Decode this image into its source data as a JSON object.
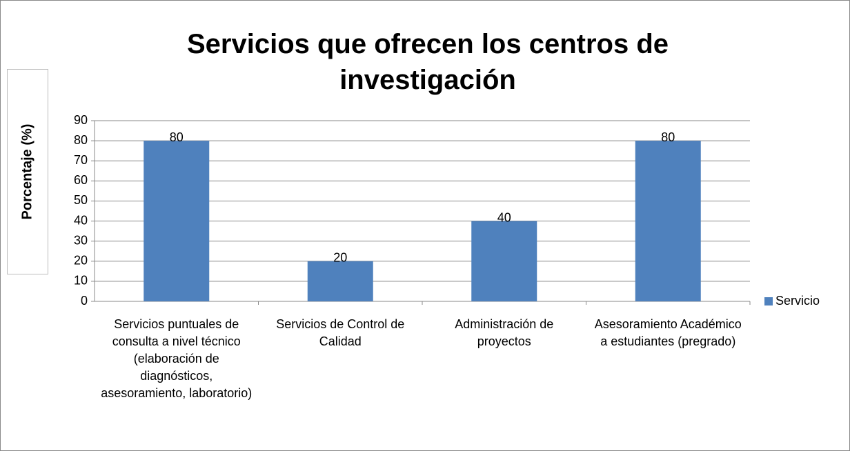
{
  "chart_data": {
    "type": "bar",
    "title": "Servicios que ofrecen los centros de investigación",
    "y_axis_label": "Porcentaje (%)",
    "categories": [
      "Servicios puntuales de consulta a nivel técnico (elaboración de diagnósticos, asesoramiento, laboratorio)",
      "Servicios de Control de Calidad",
      "Administración de proyectos",
      "Asesoramiento Académico a estudiantes (pregrado)"
    ],
    "series": [
      {
        "name": "Servicio",
        "color": "#4f81bd",
        "values": [
          80,
          20,
          40,
          80
        ]
      }
    ],
    "ylim": [
      0,
      90
    ],
    "yticks": [
      0,
      10,
      20,
      30,
      40,
      50,
      60,
      70,
      80,
      90
    ],
    "grid": true,
    "legend": "right"
  }
}
